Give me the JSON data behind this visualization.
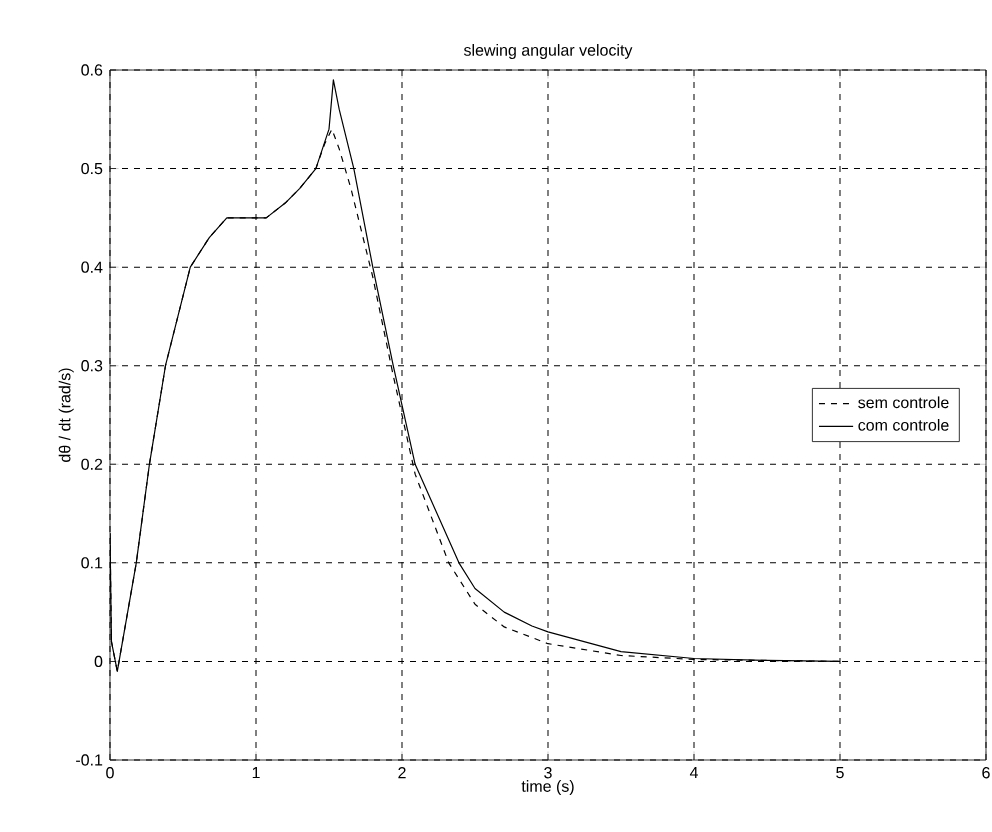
{
  "chart_data": {
    "type": "line",
    "title": "slewing angular velocity",
    "xlabel": "time (s)",
    "ylabel": "dθ / dt (rad/s)",
    "xlim": [
      0,
      6
    ],
    "xticks": [
      0,
      1,
      2,
      3,
      4,
      5,
      6
    ],
    "ylim": [
      -0.1,
      0.6
    ],
    "yticks": [
      -0.1,
      0,
      0.1,
      0.2,
      0.3,
      0.4,
      0.5,
      0.6
    ],
    "grid": true,
    "legend": "right",
    "series": [
      {
        "name": "sem controle",
        "color": "#000000",
        "line_style": "dashed",
        "x": [
          0,
          0.01,
          0.05,
          0.18,
          0.27,
          0.38,
          0.55,
          0.68,
          0.8,
          0.95,
          1.07,
          1.2,
          1.3,
          1.41,
          1.47,
          1.52,
          1.57,
          1.65,
          1.8,
          1.94,
          2.09,
          2.32,
          2.5,
          2.7,
          3,
          3.5,
          4,
          4.5,
          5
        ],
        "values": [
          0.13,
          0.02,
          -0.01,
          0.1,
          0.2,
          0.3,
          0.4,
          0.43,
          0.45,
          0.45,
          0.45,
          0.465,
          0.48,
          0.5,
          0.525,
          0.54,
          0.52,
          0.48,
          0.39,
          0.29,
          0.19,
          0.1,
          0.058,
          0.035,
          0.018,
          0.006,
          0.002,
          0.001,
          0
        ]
      },
      {
        "name": "com controle",
        "color": "#000000",
        "line_style": "solid",
        "x": [
          0,
          0.01,
          0.05,
          0.18,
          0.27,
          0.38,
          0.55,
          0.68,
          0.8,
          0.95,
          1.07,
          1.2,
          1.3,
          1.41,
          1.5,
          1.53,
          1.57,
          1.67,
          1.8,
          1.94,
          2.09,
          2.39,
          2.5,
          2.7,
          2.89,
          3,
          3.5,
          4,
          4.5,
          5
        ],
        "values": [
          0.13,
          0.02,
          -0.01,
          0.1,
          0.2,
          0.3,
          0.4,
          0.43,
          0.45,
          0.45,
          0.45,
          0.465,
          0.48,
          0.5,
          0.54,
          0.59,
          0.56,
          0.5,
          0.4,
          0.3,
          0.2,
          0.1,
          0.074,
          0.05,
          0.036,
          0.03,
          0.01,
          0.003,
          0.001,
          0
        ]
      }
    ]
  }
}
